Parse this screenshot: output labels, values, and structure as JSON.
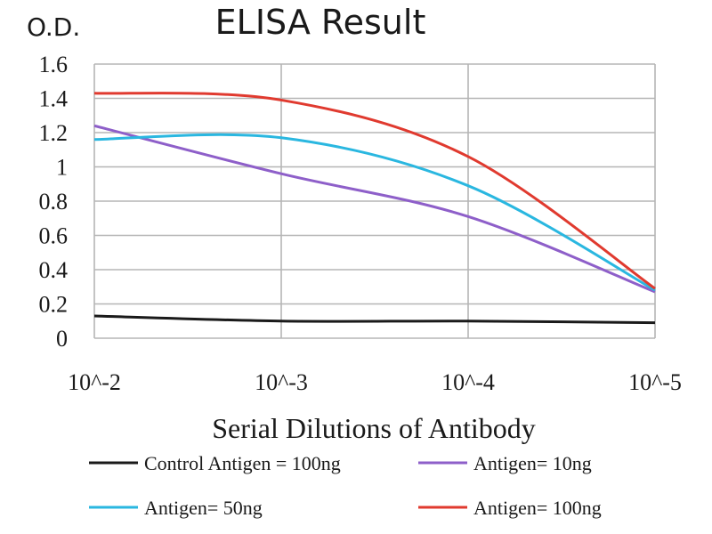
{
  "chart_data": {
    "type": "line",
    "title": "ELISA Result",
    "ylabel": "O.D.",
    "xlabel": "Serial Dilutions of Antibody",
    "categories": [
      "10^-2",
      "10^-3",
      "10^-4",
      "10^-5"
    ],
    "ylim": [
      0,
      1.6
    ],
    "yticks": [
      "0",
      "0.2",
      "0.4",
      "0.6",
      "0.8",
      "1",
      "1.2",
      "1.4",
      "1.6"
    ],
    "grid": true,
    "legend_position": "bottom",
    "series": [
      {
        "name": "Control Antigen = 100ng",
        "color": "#1a1a1a",
        "values": [
          0.13,
          0.1,
          0.1,
          0.09
        ]
      },
      {
        "name": "Antigen= 10ng",
        "color": "#8e5fc9",
        "values": [
          1.24,
          0.96,
          0.71,
          0.27
        ]
      },
      {
        "name": "Antigen= 50ng",
        "color": "#2ab7e0",
        "values": [
          1.16,
          1.17,
          0.89,
          0.28
        ]
      },
      {
        "name": "Antigen= 100ng",
        "color": "#e03a2f",
        "values": [
          1.43,
          1.39,
          1.06,
          0.29
        ]
      }
    ]
  }
}
